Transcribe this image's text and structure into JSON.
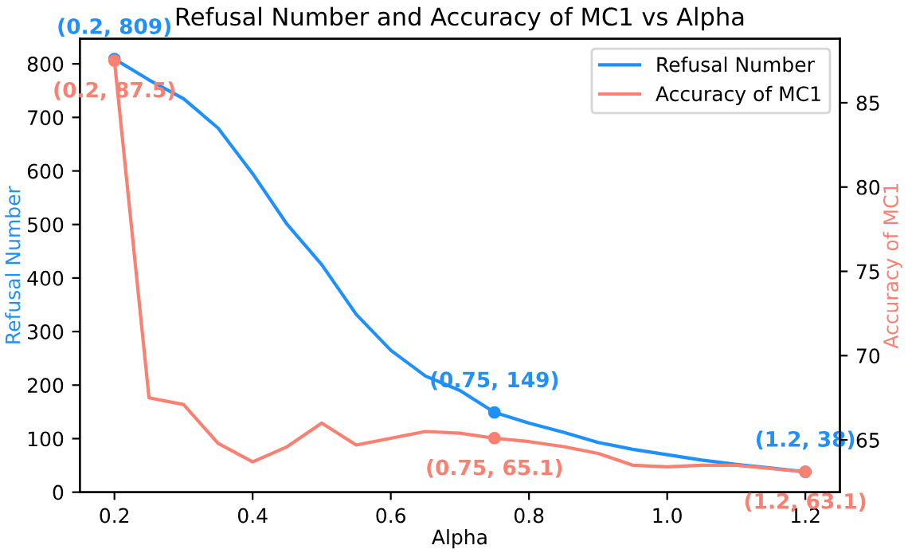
{
  "chart_data": {
    "type": "line",
    "title": "Refusal Number and Accuracy of MC1 vs Alpha",
    "xlabel": "Alpha",
    "ylabel": "Refusal Number",
    "y2label": "Accuracy of MC1",
    "x": [
      0.2,
      0.25,
      0.3,
      0.35,
      0.4,
      0.45,
      0.5,
      0.55,
      0.6,
      0.65,
      0.7,
      0.75,
      0.8,
      0.85,
      0.9,
      0.95,
      1.0,
      1.05,
      1.1,
      1.15,
      1.2
    ],
    "series": [
      {
        "name": "Refusal Number",
        "color": "#1e90ff",
        "values": [
          809,
          770,
          735,
          680,
          595,
          500,
          425,
          332,
          265,
          217,
          190,
          149,
          129,
          112,
          93,
          80,
          70,
          60,
          52,
          45,
          38
        ]
      },
      {
        "name": "Accuracy of MC1",
        "color": "#fa8072",
        "axis": "y2",
        "values": [
          87.5,
          67.5,
          67.1,
          64.8,
          63.7,
          64.6,
          66.0,
          64.7,
          65.1,
          65.5,
          65.4,
          65.1,
          64.9,
          64.6,
          64.2,
          63.5,
          63.4,
          63.5,
          63.5,
          63.3,
          63.1
        ]
      },
      {
        "type": "scatter",
        "color": "#1e90ff",
        "x": [
          0.2,
          0.75,
          1.2
        ],
        "values": [
          809,
          149,
          38
        ],
        "value_labels": [
          "(0.2, 809)",
          "(0.75, 149)",
          "(1.2, 38)"
        ]
      },
      {
        "type": "scatter",
        "color": "#fa8072",
        "axis": "y2",
        "x": [
          0.2,
          0.75,
          1.2
        ],
        "values": [
          87.5,
          65.1,
          63.1
        ],
        "value_labels": [
          "(0.2, 87.5)",
          "(0.75, 65.1)",
          "(1.2, 63.1)"
        ]
      }
    ],
    "xlim": [
      0.15,
      1.25
    ],
    "xticks": [
      0.2,
      0.4,
      0.6,
      0.8,
      {
        "value": 1.0,
        "label": "1.0"
      },
      1.2
    ],
    "ylim": [
      0,
      847
    ],
    "yticks": [
      0,
      100,
      200,
      300,
      400,
      500,
      600,
      700,
      800
    ],
    "y2lim": [
      61.9,
      88.8
    ],
    "y2ticks": [
      65,
      70,
      75,
      80,
      85
    ],
    "legend": "top right",
    "grid": false
  }
}
